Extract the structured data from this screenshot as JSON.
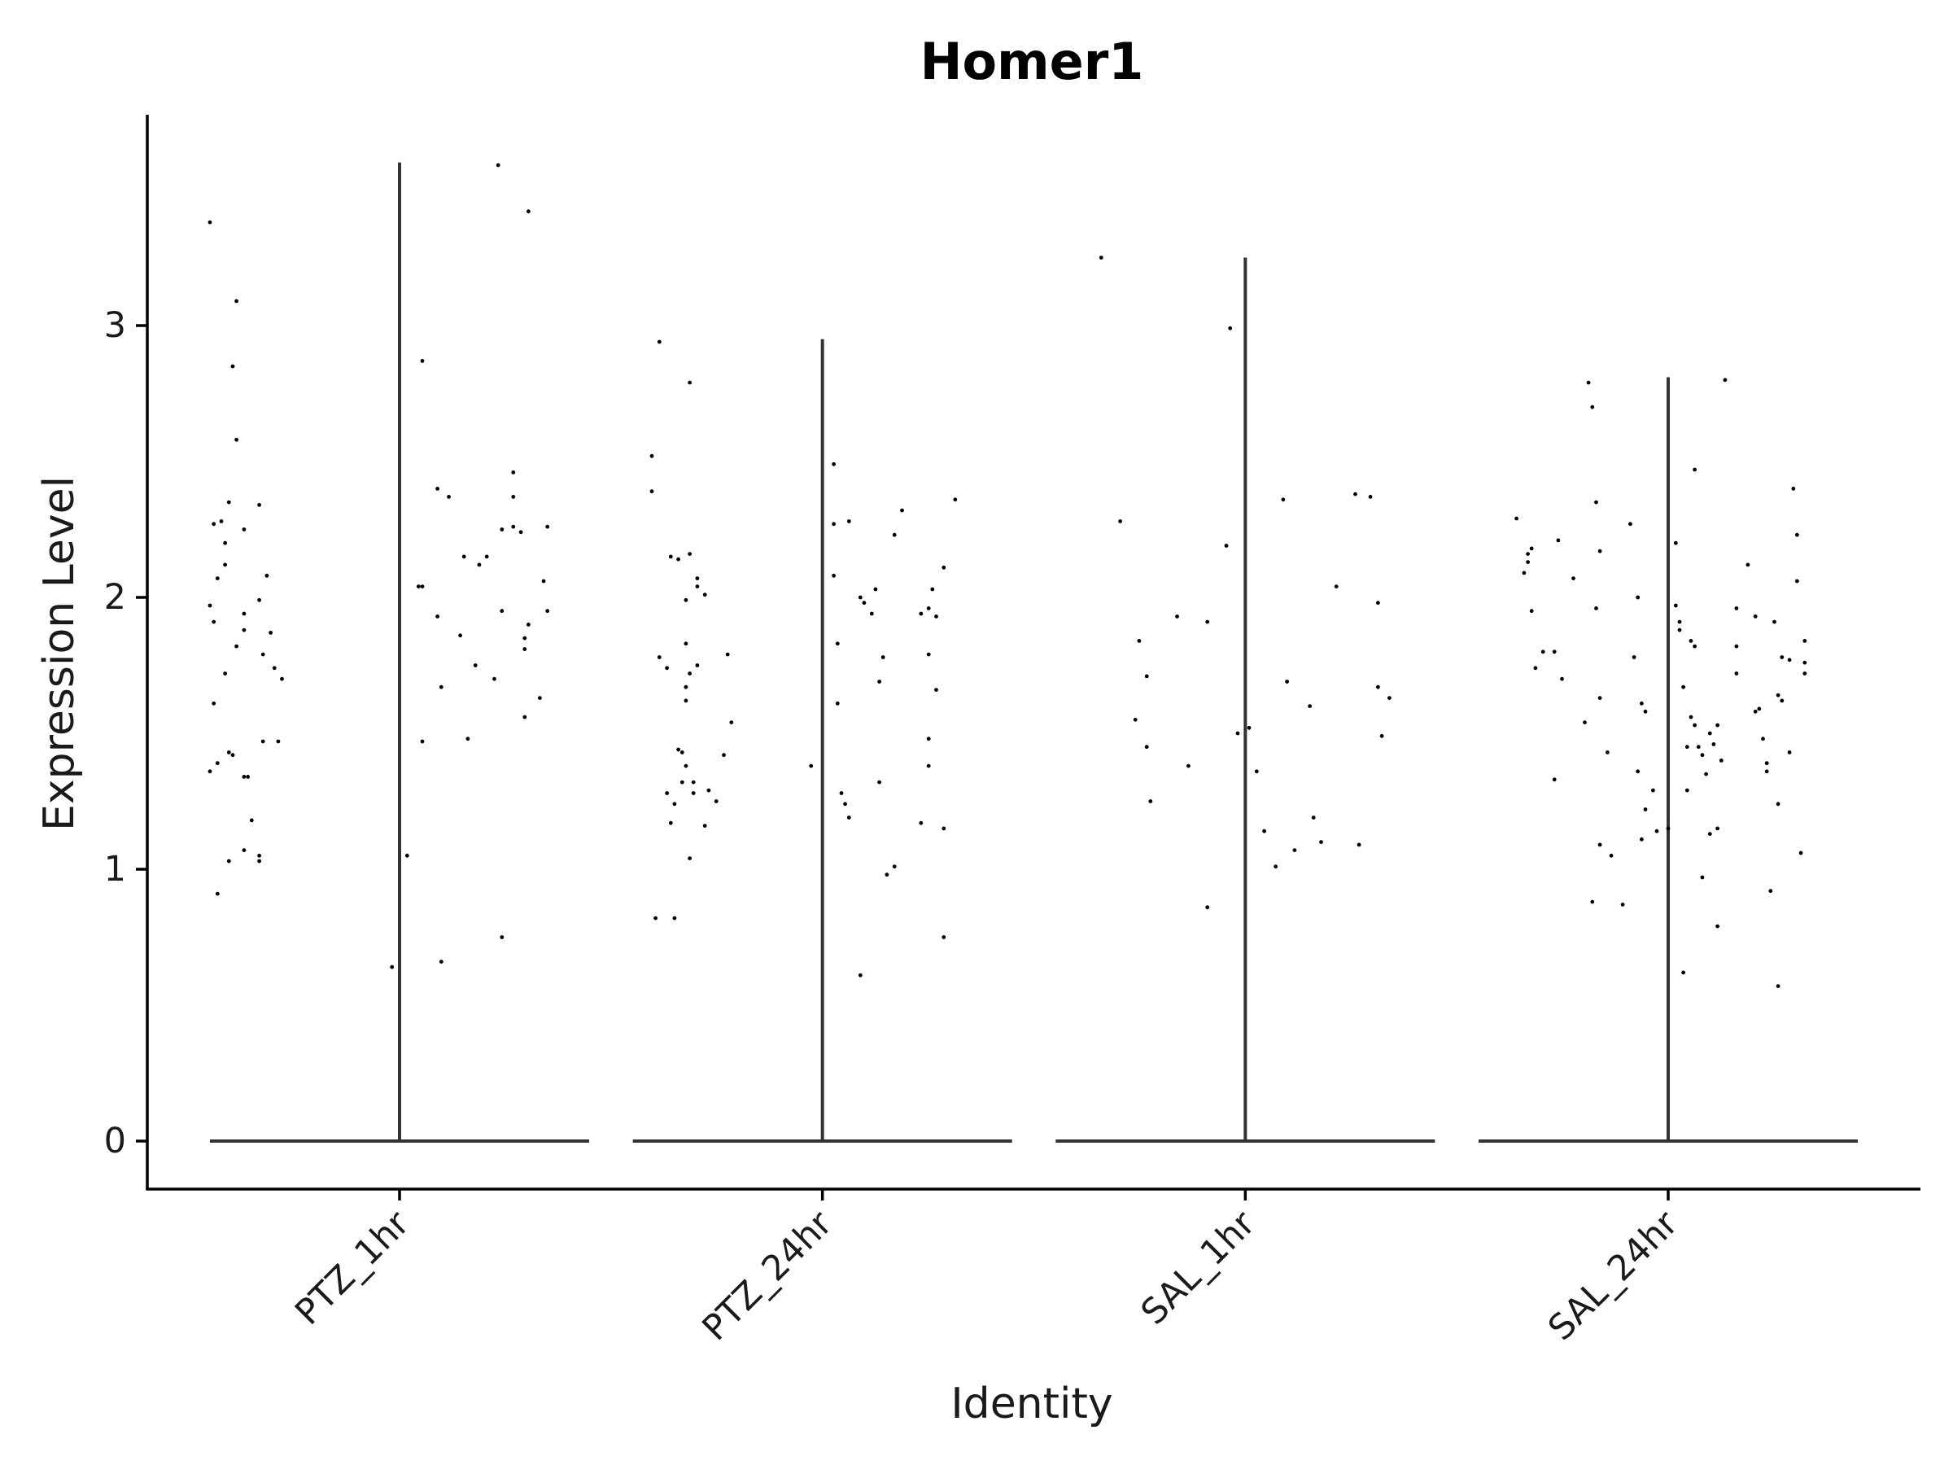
{
  "chart_data": {
    "type": "violin",
    "title": "Homer1",
    "xlabel": "Identity",
    "ylabel": "Expression Level",
    "ylim": [
      -0.18,
      3.78
    ],
    "yticks": [
      0,
      1,
      2,
      3
    ],
    "ytick_labels": [
      "0",
      "1",
      "2",
      "3"
    ],
    "grid": false,
    "legend": "none",
    "categories": [
      "PTZ_1hr",
      "PTZ_24hr",
      "SAL_1hr",
      "SAL_24hr"
    ],
    "series": [
      {
        "category": "PTZ_1hr",
        "max": 3.6,
        "points": [
          [
            -0.5,
            3.38
          ],
          [
            -0.43,
            3.09
          ],
          [
            -0.44,
            2.85
          ],
          [
            -0.43,
            2.58
          ],
          [
            -0.45,
            2.35
          ],
          [
            -0.49,
            2.27
          ],
          [
            -0.47,
            2.28
          ],
          [
            -0.5,
            1.97
          ],
          [
            -0.49,
            1.91
          ],
          [
            -0.48,
            2.07
          ],
          [
            -0.46,
            2.2
          ],
          [
            -0.46,
            2.12
          ],
          [
            -0.41,
            2.25
          ],
          [
            -0.41,
            1.94
          ],
          [
            -0.41,
            1.88
          ],
          [
            -0.43,
            1.82
          ],
          [
            -0.46,
            1.72
          ],
          [
            -0.49,
            1.61
          ],
          [
            -0.5,
            1.36
          ],
          [
            -0.48,
            1.39
          ],
          [
            -0.45,
            1.43
          ],
          [
            -0.44,
            1.42
          ],
          [
            -0.41,
            1.34
          ],
          [
            -0.4,
            1.34
          ],
          [
            -0.39,
            1.18
          ],
          [
            -0.41,
            1.07
          ],
          [
            -0.45,
            1.03
          ],
          [
            -0.37,
            1.05
          ],
          [
            -0.37,
            1.03
          ],
          [
            -0.48,
            0.91
          ],
          [
            -0.37,
            2.34
          ],
          [
            -0.35,
            2.08
          ],
          [
            -0.37,
            1.99
          ],
          [
            -0.34,
            1.87
          ],
          [
            -0.36,
            1.79
          ],
          [
            -0.33,
            1.74
          ],
          [
            -0.31,
            1.7
          ],
          [
            -0.32,
            1.47
          ],
          [
            -0.36,
            1.47
          ],
          [
            -0.02,
            0.64
          ],
          [
            0.06,
            2.87
          ],
          [
            0.1,
            2.4
          ],
          [
            0.13,
            2.37
          ],
          [
            0.06,
            2.04
          ],
          [
            0.05,
            2.04
          ],
          [
            0.1,
            1.93
          ],
          [
            0.11,
            1.67
          ],
          [
            0.06,
            1.47
          ],
          [
            0.02,
            1.05
          ],
          [
            0.11,
            0.66
          ],
          [
            0.17,
            2.15
          ],
          [
            0.21,
            2.12
          ],
          [
            0.23,
            2.15
          ],
          [
            0.16,
            1.86
          ],
          [
            0.2,
            1.75
          ],
          [
            0.18,
            1.48
          ],
          [
            0.25,
            1.7
          ],
          [
            0.27,
            2.25
          ],
          [
            0.27,
            1.95
          ],
          [
            0.27,
            0.75
          ],
          [
            0.26,
            3.59
          ],
          [
            0.34,
            3.42
          ],
          [
            0.3,
            2.46
          ],
          [
            0.3,
            2.37
          ],
          [
            0.3,
            2.26
          ],
          [
            0.32,
            2.24
          ],
          [
            0.39,
            2.26
          ],
          [
            0.38,
            2.06
          ],
          [
            0.39,
            1.95
          ],
          [
            0.34,
            1.9
          ],
          [
            0.33,
            1.85
          ],
          [
            0.33,
            1.81
          ],
          [
            0.37,
            1.63
          ],
          [
            0.33,
            1.56
          ]
        ]
      },
      {
        "category": "PTZ_24hr",
        "max": 2.95,
        "points": [
          [
            -0.43,
            2.94
          ],
          [
            -0.45,
            2.52
          ],
          [
            -0.45,
            2.39
          ],
          [
            -0.35,
            2.79
          ],
          [
            -0.35,
            2.16
          ],
          [
            -0.4,
            2.15
          ],
          [
            -0.38,
            2.14
          ],
          [
            -0.33,
            2.07
          ],
          [
            -0.33,
            2.04
          ],
          [
            -0.43,
            1.78
          ],
          [
            -0.41,
            1.74
          ],
          [
            -0.31,
            2.01
          ],
          [
            -0.36,
            1.99
          ],
          [
            -0.36,
            1.83
          ],
          [
            -0.33,
            1.75
          ],
          [
            -0.35,
            1.72
          ],
          [
            -0.36,
            1.67
          ],
          [
            -0.36,
            1.62
          ],
          [
            -0.38,
            1.44
          ],
          [
            -0.37,
            1.43
          ],
          [
            -0.36,
            1.38
          ],
          [
            -0.37,
            1.32
          ],
          [
            -0.41,
            1.28
          ],
          [
            -0.4,
            1.17
          ],
          [
            -0.39,
            1.24
          ],
          [
            -0.34,
            1.32
          ],
          [
            -0.34,
            1.28
          ],
          [
            -0.35,
            1.04
          ],
          [
            -0.44,
            0.82
          ],
          [
            -0.39,
            0.82
          ],
          [
            -0.3,
            1.29
          ],
          [
            -0.28,
            1.25
          ],
          [
            -0.31,
            1.16
          ],
          [
            -0.25,
            1.79
          ],
          [
            -0.24,
            1.54
          ],
          [
            -0.26,
            1.42
          ],
          [
            -0.03,
            1.38
          ],
          [
            0.03,
            2.49
          ],
          [
            0.03,
            2.27
          ],
          [
            0.07,
            2.28
          ],
          [
            0.03,
            2.08
          ],
          [
            0.04,
            1.83
          ],
          [
            0.04,
            1.61
          ],
          [
            0.05,
            1.28
          ],
          [
            0.06,
            1.24
          ],
          [
            0.07,
            1.19
          ],
          [
            0.1,
            2.0
          ],
          [
            0.11,
            1.98
          ],
          [
            0.13,
            1.94
          ],
          [
            0.14,
            2.03
          ],
          [
            0.16,
            1.78
          ],
          [
            0.15,
            1.69
          ],
          [
            0.15,
            1.32
          ],
          [
            0.19,
            2.23
          ],
          [
            0.21,
            2.32
          ],
          [
            0.26,
            1.94
          ],
          [
            0.28,
            1.96
          ],
          [
            0.28,
            1.79
          ],
          [
            0.3,
            1.93
          ],
          [
            0.3,
            1.66
          ],
          [
            0.29,
            2.03
          ],
          [
            0.32,
            2.11
          ],
          [
            0.35,
            2.36
          ],
          [
            0.19,
            1.01
          ],
          [
            0.17,
            0.98
          ],
          [
            0.28,
            1.48
          ],
          [
            0.28,
            1.38
          ],
          [
            0.26,
            1.17
          ],
          [
            0.32,
            1.15
          ],
          [
            0.32,
            0.75
          ],
          [
            0.1,
            0.61
          ]
        ]
      },
      {
        "category": "SAL_1hr",
        "max": 3.25,
        "points": [
          [
            -0.38,
            3.25
          ],
          [
            -0.33,
            2.28
          ],
          [
            -0.28,
            1.84
          ],
          [
            -0.26,
            1.71
          ],
          [
            -0.29,
            1.55
          ],
          [
            -0.26,
            1.45
          ],
          [
            -0.25,
            1.25
          ],
          [
            -0.18,
            1.93
          ],
          [
            -0.15,
            1.38
          ],
          [
            -0.1,
            1.91
          ],
          [
            -0.05,
            2.19
          ],
          [
            -0.04,
            2.99
          ],
          [
            -0.1,
            0.86
          ],
          [
            0.03,
            1.36
          ],
          [
            0.05,
            1.14
          ],
          [
            0.08,
            1.01
          ],
          [
            0.1,
            2.36
          ],
          [
            0.11,
            1.69
          ],
          [
            0.13,
            1.07
          ],
          [
            0.17,
            1.6
          ],
          [
            0.18,
            1.19
          ],
          [
            0.2,
            1.1
          ],
          [
            0.24,
            2.04
          ],
          [
            0.29,
            2.38
          ],
          [
            0.33,
            2.37
          ],
          [
            0.3,
            1.09
          ],
          [
            0.35,
            1.67
          ],
          [
            0.36,
            1.49
          ],
          [
            0.35,
            1.98
          ],
          [
            0.38,
            1.63
          ],
          [
            -0.02,
            1.5
          ],
          [
            0.01,
            1.52
          ]
        ]
      },
      {
        "category": "SAL_24hr",
        "max": 2.81,
        "points": [
          [
            -0.4,
            2.29
          ],
          [
            -0.36,
            2.18
          ],
          [
            -0.37,
            2.16
          ],
          [
            -0.37,
            2.13
          ],
          [
            -0.38,
            2.09
          ],
          [
            -0.36,
            1.95
          ],
          [
            -0.35,
            1.74
          ],
          [
            -0.33,
            1.8
          ],
          [
            -0.3,
            1.8
          ],
          [
            -0.3,
            1.33
          ],
          [
            -0.29,
            2.21
          ],
          [
            -0.28,
            1.7
          ],
          [
            -0.25,
            2.07
          ],
          [
            -0.21,
            2.79
          ],
          [
            -0.2,
            2.7
          ],
          [
            -0.19,
            2.35
          ],
          [
            -0.18,
            2.17
          ],
          [
            -0.19,
            1.96
          ],
          [
            -0.18,
            1.63
          ],
          [
            -0.22,
            1.54
          ],
          [
            -0.16,
            1.43
          ],
          [
            -0.18,
            1.09
          ],
          [
            -0.2,
            0.88
          ],
          [
            -0.15,
            1.05
          ],
          [
            -0.12,
            0.87
          ],
          [
            -0.1,
            2.27
          ],
          [
            -0.09,
            1.78
          ],
          [
            -0.08,
            2.0
          ],
          [
            -0.07,
            1.61
          ],
          [
            -0.06,
            1.58
          ],
          [
            -0.08,
            1.36
          ],
          [
            -0.06,
            1.22
          ],
          [
            -0.07,
            1.11
          ],
          [
            -0.04,
            1.29
          ],
          [
            -0.03,
            1.14
          ],
          [
            0.0,
            1.15
          ],
          [
            0.02,
            2.2
          ],
          [
            0.02,
            1.97
          ],
          [
            0.03,
            1.91
          ],
          [
            0.03,
            1.88
          ],
          [
            0.04,
            1.67
          ],
          [
            0.06,
            1.84
          ],
          [
            0.06,
            1.56
          ],
          [
            0.05,
            1.45
          ],
          [
            0.05,
            1.29
          ],
          [
            0.04,
            0.62
          ],
          [
            0.07,
            1.82
          ],
          [
            0.07,
            1.53
          ],
          [
            0.08,
            1.45
          ],
          [
            0.09,
            1.42
          ],
          [
            0.1,
            1.35
          ],
          [
            0.11,
            1.5
          ],
          [
            0.12,
            1.46
          ],
          [
            0.13,
            1.53
          ],
          [
            0.13,
            1.15
          ],
          [
            0.14,
            1.4
          ],
          [
            0.11,
            1.13
          ],
          [
            0.09,
            0.97
          ],
          [
            0.07,
            2.47
          ],
          [
            0.15,
            2.8
          ],
          [
            0.18,
            1.96
          ],
          [
            0.18,
            1.82
          ],
          [
            0.18,
            1.72
          ],
          [
            0.21,
            2.12
          ],
          [
            0.23,
            1.58
          ],
          [
            0.24,
            1.59
          ],
          [
            0.25,
            1.48
          ],
          [
            0.23,
            1.93
          ],
          [
            0.26,
            1.39
          ],
          [
            0.26,
            1.36
          ],
          [
            0.28,
            1.91
          ],
          [
            0.29,
            1.64
          ],
          [
            0.3,
            1.62
          ],
          [
            0.3,
            1.78
          ],
          [
            0.32,
            1.77
          ],
          [
            0.32,
            1.43
          ],
          [
            0.33,
            2.4
          ],
          [
            0.34,
            2.23
          ],
          [
            0.34,
            2.06
          ],
          [
            0.27,
            0.92
          ],
          [
            0.29,
            1.24
          ],
          [
            0.29,
            0.57
          ],
          [
            0.36,
            1.84
          ],
          [
            0.36,
            1.76
          ],
          [
            0.36,
            1.72
          ],
          [
            0.35,
            1.06
          ],
          [
            0.13,
            0.79
          ]
        ]
      }
    ]
  }
}
